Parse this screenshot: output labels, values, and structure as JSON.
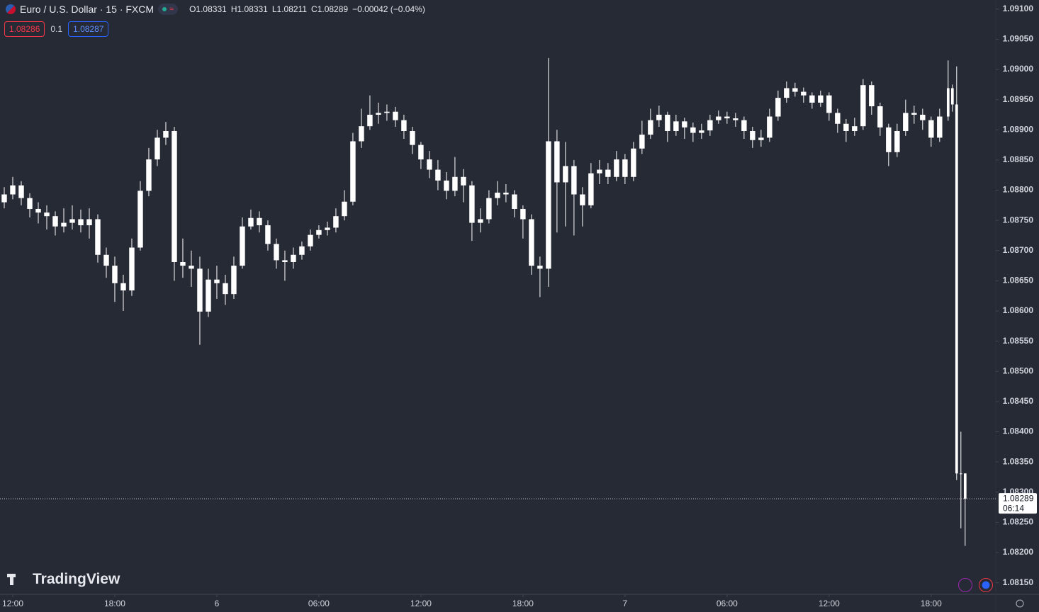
{
  "header": {
    "symbol": "Euro / U.S. Dollar · 15 · FXCM",
    "ohlc": [
      "O1.08331",
      "H1.08331",
      "L1.08211",
      "C1.08289"
    ],
    "change": "−0.00042 (−0.04%)",
    "bid": "1.08286",
    "spread": "0.1",
    "ask": "1.08287",
    "branding": "TradingView"
  },
  "chart_data": {
    "type": "candlestick",
    "color": "#ffffff",
    "grid": false,
    "xlim": [
      11.25,
      69.8
    ],
    "ylim": [
      1.08132,
      1.09115
    ],
    "xticks": [
      {
        "value": 12,
        "label": "12:00"
      },
      {
        "value": 18,
        "label": "18:00"
      },
      {
        "value": 24,
        "label": "6"
      },
      {
        "value": 30,
        "label": "06:00"
      },
      {
        "value": 36,
        "label": "12:00"
      },
      {
        "value": 42,
        "label": "18:00"
      },
      {
        "value": 48,
        "label": "7"
      },
      {
        "value": 54,
        "label": "06:00"
      },
      {
        "value": 60,
        "label": "12:00"
      },
      {
        "value": 66,
        "label": "18:00"
      }
    ],
    "yticks": [
      {
        "value": 1.091,
        "label": "1.09100"
      },
      {
        "value": 1.0905,
        "label": "1.09050"
      },
      {
        "value": 1.09,
        "label": "1.09000"
      },
      {
        "value": 1.0895,
        "label": "1.08950"
      },
      {
        "value": 1.089,
        "label": "1.08900"
      },
      {
        "value": 1.0885,
        "label": "1.08850"
      },
      {
        "value": 1.088,
        "label": "1.08800"
      },
      {
        "value": 1.0875,
        "label": "1.08750"
      },
      {
        "value": 1.087,
        "label": "1.08700"
      },
      {
        "value": 1.0865,
        "label": "1.08650"
      },
      {
        "value": 1.086,
        "label": "1.08600"
      },
      {
        "value": 1.0855,
        "label": "1.08550"
      },
      {
        "value": 1.085,
        "label": "1.08500"
      },
      {
        "value": 1.0845,
        "label": "1.08450"
      },
      {
        "value": 1.084,
        "label": "1.08400"
      },
      {
        "value": 1.0835,
        "label": "1.08350"
      },
      {
        "value": 1.083,
        "label": "1.08300"
      },
      {
        "value": 1.0825,
        "label": "1.08250"
      },
      {
        "value": 1.082,
        "label": "1.08200"
      },
      {
        "value": 1.0815,
        "label": "1.08150"
      }
    ],
    "last_price": {
      "value": 1.08289,
      "label": "1.08289"
    },
    "countdown": "06:14",
    "x": [
      11.5,
      12,
      12.5,
      13,
      13.5,
      14,
      14.5,
      15,
      15.5,
      16,
      16.5,
      17,
      17.5,
      18,
      18.5,
      19,
      19.5,
      20,
      20.5,
      21,
      21.5,
      22,
      22.5,
      23,
      23.5,
      24,
      24.5,
      25,
      25.5,
      26,
      26.5,
      27,
      27.5,
      28,
      28.5,
      29,
      29.5,
      30,
      30.5,
      31,
      31.5,
      32,
      32.5,
      33,
      33.5,
      34,
      34.5,
      35,
      35.5,
      36,
      36.5,
      37,
      37.5,
      38,
      38.5,
      39,
      39.5,
      40,
      40.5,
      41,
      41.5,
      42,
      42.5,
      43,
      43.5,
      44,
      44.5,
      45,
      45.5,
      46,
      46.5,
      47,
      47.5,
      48,
      48.5,
      49,
      49.5,
      50,
      50.5,
      51,
      51.5,
      52,
      52.5,
      53,
      53.5,
      54,
      54.5,
      55,
      55.5,
      56,
      56.5,
      57,
      57.5,
      58,
      58.5,
      59,
      59.5,
      60,
      60.5,
      61,
      61.5,
      62,
      62.5,
      63,
      63.5,
      64,
      64.5,
      65,
      65.5,
      66,
      66.5,
      67,
      67.25,
      67.5,
      67.75,
      68
    ],
    "open": [
      1.0878,
      1.08793,
      1.08808,
      1.08787,
      1.08769,
      1.08763,
      1.08757,
      1.0874,
      1.08746,
      1.08752,
      1.08742,
      1.08752,
      1.08693,
      1.08675,
      1.08646,
      1.08634,
      1.08705,
      1.08799,
      1.08851,
      1.08887,
      1.08898,
      1.08681,
      1.08675,
      1.0867,
      1.08599,
      1.08652,
      1.08646,
      1.08628,
      1.08675,
      1.0874,
      1.08754,
      1.08742,
      1.08711,
      1.08684,
      1.08681,
      1.08693,
      1.08707,
      1.08726,
      1.08734,
      1.08738,
      1.08757,
      1.08781,
      1.08881,
      1.08906,
      1.08925,
      1.08928,
      1.0893,
      1.08916,
      1.08898,
      1.08875,
      1.08851,
      1.08834,
      1.08816,
      1.08799,
      1.08822,
      1.08808,
      1.08746,
      1.08752,
      1.08787,
      1.08796,
      1.08793,
      1.08769,
      1.08752,
      1.08675,
      1.0867,
      1.08881,
      1.08813,
      1.0884,
      1.08793,
      1.08775,
      1.08828,
      1.08834,
      1.08822,
      1.08851,
      1.08822,
      1.08869,
      1.08892,
      1.08916,
      1.08925,
      1.08898,
      1.08914,
      1.08904,
      1.08895,
      1.08899,
      1.08916,
      1.08922,
      1.08919,
      1.08916,
      1.08898,
      1.08883,
      1.08887,
      1.08922,
      1.08953,
      1.08969,
      1.08963,
      1.08957,
      1.08945,
      1.08957,
      1.08928,
      1.0891,
      1.08898,
      1.08906,
      1.08974,
      1.08939,
      1.08904,
      1.08863,
      1.08898,
      1.08928,
      1.08925,
      1.08916,
      1.08887,
      1.08922,
      1.08969,
      1.08942,
      1.08331,
      1.08331
    ],
    "high": [
      1.08805,
      1.08822,
      1.08815,
      1.08795,
      1.0878,
      1.08775,
      1.08765,
      1.0877,
      1.08775,
      1.08768,
      1.0877,
      1.0876,
      1.08705,
      1.0869,
      1.0866,
      1.0872,
      1.08815,
      1.0887,
      1.089,
      1.08913,
      1.08905,
      1.0872,
      1.087,
      1.0869,
      1.0867,
      1.08675,
      1.0866,
      1.0869,
      1.08755,
      1.08768,
      1.08765,
      1.0875,
      1.0872,
      1.087,
      1.08705,
      1.08715,
      1.08735,
      1.08742,
      1.08748,
      1.0877,
      1.088,
      1.08895,
      1.08935,
      1.08957,
      1.08945,
      1.08942,
      1.08938,
      1.08925,
      1.08905,
      1.0888,
      1.08865,
      1.0885,
      1.0883,
      1.08855,
      1.08835,
      1.08815,
      1.0877,
      1.088,
      1.08815,
      1.0881,
      1.088,
      1.08775,
      1.0876,
      1.0869,
      1.09019,
      1.089,
      1.0888,
      1.0885,
      1.08805,
      1.08845,
      1.0885,
      1.08845,
      1.08865,
      1.0886,
      1.0888,
      1.08915,
      1.08935,
      1.0894,
      1.0893,
      1.08925,
      1.0892,
      1.08912,
      1.0891,
      1.08925,
      1.08932,
      1.0893,
      1.08928,
      1.08922,
      1.08905,
      1.089,
      1.08935,
      1.08965,
      1.0898,
      1.08978,
      1.0897,
      1.08962,
      1.08965,
      1.08962,
      1.08935,
      1.08918,
      1.0892,
      1.08984,
      1.0898,
      1.08945,
      1.0891,
      1.0891,
      1.0895,
      1.0894,
      1.08935,
      1.08922,
      1.08935,
      1.09015,
      1.08975,
      1.09005,
      1.084,
      1.08331
    ],
    "low": [
      1.0877,
      1.08785,
      1.08775,
      1.08755,
      1.08745,
      1.08735,
      1.08725,
      1.0873,
      1.08735,
      1.0873,
      1.0872,
      1.0868,
      1.08655,
      1.08615,
      1.086,
      1.08625,
      1.087,
      1.0879,
      1.0884,
      1.08875,
      1.0865,
      1.08655,
      1.0864,
      1.08544,
      1.0859,
      1.0862,
      1.0861,
      1.0862,
      1.0867,
      1.08735,
      1.0873,
      1.087,
      1.0867,
      1.0865,
      1.0867,
      1.08685,
      1.087,
      1.0872,
      1.08725,
      1.0873,
      1.0875,
      1.08775,
      1.0887,
      1.089,
      1.0891,
      1.08915,
      1.08905,
      1.08885,
      1.0886,
      1.08835,
      1.0882,
      1.088,
      1.08785,
      1.0879,
      1.0878,
      1.08716,
      1.0873,
      1.08745,
      1.08775,
      1.0878,
      1.08755,
      1.0872,
      1.0866,
      1.08623,
      1.0864,
      1.0873,
      1.0874,
      1.08725,
      1.0874,
      1.0877,
      1.0881,
      1.0881,
      1.08815,
      1.0881,
      1.08815,
      1.0886,
      1.08885,
      1.08905,
      1.0888,
      1.0889,
      1.08885,
      1.0888,
      1.08885,
      1.0889,
      1.0891,
      1.0891,
      1.08905,
      1.08885,
      1.0887,
      1.08872,
      1.0888,
      1.08915,
      1.08945,
      1.08955,
      1.08945,
      1.08935,
      1.08938,
      1.08915,
      1.08895,
      1.0888,
      1.0889,
      1.089,
      1.08925,
      1.0889,
      1.0884,
      1.08855,
      1.0889,
      1.0891,
      1.089,
      1.08872,
      1.0888,
      1.08915,
      1.0893,
      1.0832,
      1.0824,
      1.08211
    ],
    "close": [
      1.08793,
      1.08808,
      1.08787,
      1.08769,
      1.08763,
      1.08757,
      1.0874,
      1.08746,
      1.08752,
      1.08742,
      1.08752,
      1.08693,
      1.08675,
      1.08646,
      1.08634,
      1.08705,
      1.08799,
      1.08851,
      1.08887,
      1.08898,
      1.08681,
      1.08675,
      1.0867,
      1.08599,
      1.08652,
      1.08646,
      1.08628,
      1.08675,
      1.0874,
      1.08754,
      1.08742,
      1.08711,
      1.08684,
      1.08681,
      1.08693,
      1.08707,
      1.08726,
      1.08734,
      1.08738,
      1.08757,
      1.08781,
      1.08881,
      1.08906,
      1.08925,
      1.08928,
      1.0893,
      1.08916,
      1.08898,
      1.08875,
      1.08851,
      1.08834,
      1.08816,
      1.08799,
      1.08822,
      1.08808,
      1.08746,
      1.08752,
      1.08787,
      1.08796,
      1.08793,
      1.08769,
      1.08752,
      1.08675,
      1.0867,
      1.08881,
      1.08813,
      1.0884,
      1.08793,
      1.08775,
      1.08828,
      1.08834,
      1.08822,
      1.08851,
      1.08822,
      1.08869,
      1.08892,
      1.08916,
      1.08925,
      1.08898,
      1.08914,
      1.08904,
      1.08895,
      1.08899,
      1.08916,
      1.08922,
      1.08919,
      1.08916,
      1.08898,
      1.08883,
      1.08887,
      1.08922,
      1.08953,
      1.08969,
      1.08963,
      1.08957,
      1.08945,
      1.08957,
      1.08928,
      1.0891,
      1.08898,
      1.08906,
      1.08974,
      1.08939,
      1.08904,
      1.08863,
      1.08898,
      1.08928,
      1.08925,
      1.08916,
      1.08887,
      1.08922,
      1.08969,
      1.08942,
      1.08331,
      1.08331,
      1.08289
    ]
  }
}
